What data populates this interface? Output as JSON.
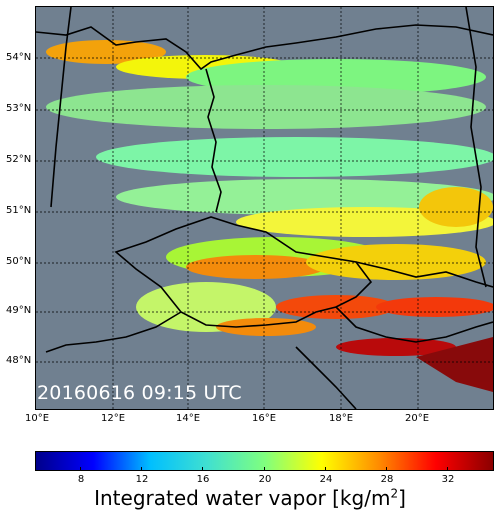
{
  "map": {
    "timestamp": "20160616 09:15 UTC",
    "lat_labels": [
      "54°N",
      "53°N",
      "52°N",
      "51°N",
      "50°N",
      "49°N",
      "48°N"
    ],
    "lon_labels": [
      "10°E",
      "12°E",
      "14°E",
      "16°E",
      "18°E",
      "20°E"
    ],
    "background_color": "#708090",
    "gridline_color": "#000000",
    "border_color": "#000000"
  },
  "colorbar": {
    "ticks": [
      "8",
      "12",
      "16",
      "20",
      "24",
      "28",
      "32"
    ],
    "label_text": "Integrated water vapor [kg/m",
    "label_sup": "2",
    "label_end": "]",
    "range": [
      6,
      36
    ],
    "colors": [
      "#00008b",
      "#0000ff",
      "#00bfff",
      "#40e0d0",
      "#7fff7f",
      "#ffff00",
      "#ff8c00",
      "#ff0000",
      "#8b0000"
    ]
  }
}
